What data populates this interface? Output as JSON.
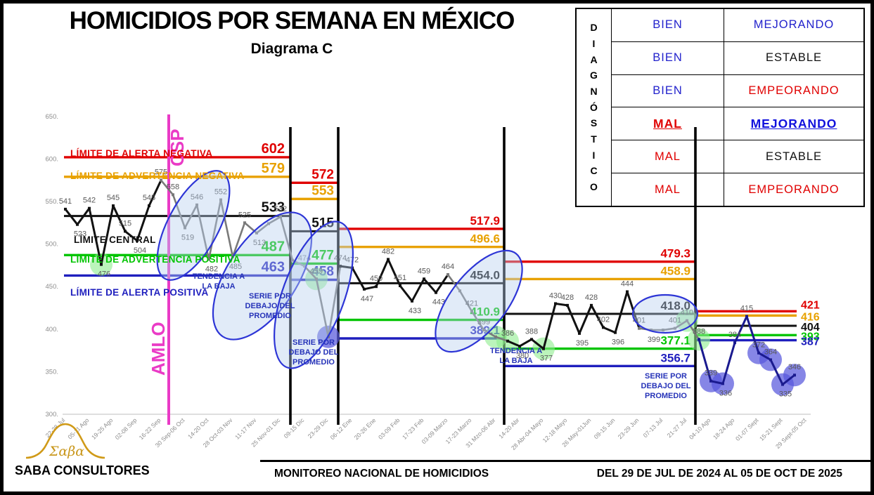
{
  "page": {
    "title": "HOMICIDIOS POR SEMANA EN MÉXICO",
    "subtitle": "Diagrama C"
  },
  "diagnostic_table": {
    "vertical_header": "DIAGNÓSTICO",
    "rows": [
      {
        "status": "BIEN",
        "status_color": "#2222cc",
        "trend": "MEJORANDO",
        "trend_color": "#2222cc",
        "current": false
      },
      {
        "status": "BIEN",
        "status_color": "#2222cc",
        "trend": "ESTABLE",
        "trend_color": "#111111",
        "current": false
      },
      {
        "status": "BIEN",
        "status_color": "#2222cc",
        "trend": "EMPEORANDO",
        "trend_color": "#e00000",
        "current": false
      },
      {
        "status": "MAL",
        "status_color": "#e00000",
        "trend": "MEJORANDO",
        "trend_color": "#1111dd",
        "current": true
      },
      {
        "status": "MAL",
        "status_color": "#e00000",
        "trend": "ESTABLE",
        "trend_color": "#111111",
        "current": false
      },
      {
        "status": "MAL",
        "status_color": "#e00000",
        "trend": "EMPEORANDO",
        "trend_color": "#e00000",
        "current": false
      }
    ]
  },
  "footer": {
    "logo_text": "Σαβα",
    "brand": "SABA CONSULTORES",
    "center": "MONITOREO NACIONAL DE HOMICIDIOS",
    "right": "DEL 29 DE JUL DE 2024 AL 05 DE OCT DE 2025"
  },
  "chart_data": {
    "type": "line",
    "title": "Homicidios por semana en México — Diagrama C",
    "ylabel": "",
    "xlabel": "",
    "ylim": [
      300,
      650
    ],
    "grid": false,
    "yticks": [
      650,
      600,
      550,
      500,
      450,
      400,
      350,
      300
    ],
    "x_tick_labels": [
      "22-28 Jul",
      "05-11 Ago",
      "19-25 Ago",
      "02-08 Sep",
      "16-22 Sep",
      "30 Sep-06 Oct",
      "14-20 Oct",
      "28 Oct-03 Nov",
      "11-17 Nov",
      "25 Nov-01 Dic",
      "09-15 Dic",
      "23-29 Dic",
      "06-12 Ene",
      "20-26 Ene",
      "03-09 Feb",
      "17-23 Feb",
      "03-09 Marzo",
      "17-23 Marzo",
      "31 Mzo-06 Abr",
      "14-20 Abr",
      "28 Abr-04 Mayo",
      "12-18 Mayo",
      "26 May-01Jun",
      "09-15 Jun",
      "23-29 Jun",
      "07-13 Jul",
      "21-27 Jul",
      "04-10 Ago",
      "18-24 Ago",
      "01-07 Sept",
      "15-21 Sept",
      "29 Sept-05 Oct"
    ],
    "series_name": "Homicidios por semana",
    "points": [
      {
        "v": 541,
        "l": "541"
      },
      {
        "v": 523,
        "l": "523"
      },
      {
        "v": 542,
        "l": "542"
      },
      {
        "v": 476,
        "l": "476",
        "hl": "g"
      },
      {
        "v": 545,
        "l": "545"
      },
      {
        "v": 515,
        "l": "515"
      },
      {
        "v": 504,
        "l": "504"
      },
      {
        "v": 545,
        "l": "545"
      },
      {
        "v": 575,
        "l": "575"
      },
      {
        "v": 558,
        "l": "558"
      },
      {
        "v": 519,
        "l": "519"
      },
      {
        "v": 546,
        "l": "546"
      },
      {
        "v": 482,
        "l": "482"
      },
      {
        "v": 552,
        "l": "552"
      },
      {
        "v": 485,
        "l": "485"
      },
      {
        "v": 525,
        "l": "525"
      },
      {
        "v": 513,
        "l": "513"
      },
      {
        "v": 524
      },
      {
        "v": 532,
        "l": "532"
      },
      {
        "v": 481
      },
      {
        "v": 474,
        "l": "474"
      },
      {
        "v": 459,
        "l": "459",
        "hl": "g"
      },
      {
        "v": 391,
        "hl": "b"
      },
      {
        "v": 474,
        "l": "474"
      },
      {
        "v": 472,
        "l": "472"
      },
      {
        "v": 447,
        "l": "447"
      },
      {
        "v": 450,
        "l": "450"
      },
      {
        "v": 482,
        "l": "482"
      },
      {
        "v": 451,
        "l": "451"
      },
      {
        "v": 433,
        "l": "433"
      },
      {
        "v": 459,
        "l": "459"
      },
      {
        "v": 443,
        "l": "443"
      },
      {
        "v": 464,
        "l": "464"
      },
      {
        "v": 445
      },
      {
        "v": 421,
        "l": "421"
      },
      {
        "v": 399,
        "l": "399"
      },
      {
        "v": 391,
        "hl": "g"
      },
      {
        "v": 386,
        "l": "386",
        "hl": "g"
      },
      {
        "v": 380,
        "l": "380"
      },
      {
        "v": 388,
        "l": "388"
      },
      {
        "v": 377,
        "l": "377",
        "hl": "g"
      },
      {
        "v": 430,
        "l": "430"
      },
      {
        "v": 428,
        "l": "428"
      },
      {
        "v": 395,
        "l": "395"
      },
      {
        "v": 428,
        "l": "428"
      },
      {
        "v": 402,
        "l": "402"
      },
      {
        "v": 396,
        "l": "396"
      },
      {
        "v": 444,
        "l": "444"
      },
      {
        "v": 401,
        "l": "401"
      },
      {
        "v": 399,
        "l": "399"
      },
      {
        "v": 399
      },
      {
        "v": 401,
        "l": "401"
      },
      {
        "v": 410,
        "l": "410",
        "hl": "g"
      },
      {
        "v": 388,
        "l": "388",
        "hl": "g"
      },
      {
        "v": 339,
        "l": "339",
        "hl": "b"
      },
      {
        "v": 336,
        "l": "336",
        "hl": "b"
      },
      {
        "v": 384,
        "l": "384"
      },
      {
        "v": 415,
        "l": "415"
      },
      {
        "v": 372,
        "l": "372",
        "hl": "b"
      },
      {
        "v": 364,
        "l": "364",
        "hl": "b"
      },
      {
        "v": 335,
        "l": "335",
        "hl": "b"
      },
      {
        "v": 346,
        "l": "346",
        "hl": "b"
      }
    ],
    "color_spans": [
      [
        0,
        8,
        "black"
      ],
      [
        8,
        23,
        "gray"
      ],
      [
        23,
        32,
        "black"
      ],
      [
        32,
        37,
        "gray"
      ],
      [
        37,
        48,
        "black"
      ],
      [
        48,
        53,
        "gray"
      ],
      [
        53,
        61,
        "navy"
      ]
    ],
    "segments": [
      {
        "x0": 86,
        "x1": 408,
        "label_x": 400,
        "label_size": 20,
        "limits": {
          "alerta_negativa": "602",
          "advertencia_negativa": "579",
          "central": "533",
          "advertencia_positiva": "487",
          "alerta_positiva": "463"
        }
      },
      {
        "x0": 408,
        "x1": 476,
        "label_x": 470,
        "label_size": 19,
        "limits": {
          "alerta_negativa": "572",
          "advertencia_negativa": "553",
          "central": "515",
          "advertencia_positiva": "477",
          "alerta_positiva": "458"
        }
      },
      {
        "x0": 476,
        "x1": 712,
        "label_x": 706,
        "label_size": 17,
        "limits": {
          "alerta_negativa": "517.9",
          "advertencia_negativa": "496.6",
          "central": "454.0",
          "advertencia_positiva": "410.9",
          "alerta_positiva": "389.1"
        }
      },
      {
        "x0": 712,
        "x1": 984,
        "label_x": 977,
        "label_size": 17,
        "limits": {
          "alerta_negativa": "479.3",
          "advertencia_negativa": "458.9",
          "central": "418.0",
          "advertencia_positiva": "377.1",
          "alerta_positiva": "356.7"
        }
      },
      {
        "x0": 984,
        "x1": 1128,
        "label_x": 1134,
        "label_size": 16,
        "label_side": "right",
        "limits": {
          "alerta_negativa": "421",
          "advertencia_negativa": "416",
          "central": "404",
          "advertencia_positiva": "393",
          "alerta_positiva": "387"
        }
      }
    ],
    "segment_boundaries_x": [
      408,
      476,
      712,
      984
    ],
    "event_line": {
      "x": 235,
      "top_label": "CSP",
      "bottom_label": "AMLO",
      "color": "#ea3bc6"
    },
    "limit_names": [
      {
        "text": "LÍMITE DE ALERTA NEGATIVA",
        "x": 95,
        "y": 218,
        "c": "red"
      },
      {
        "text": "LÍMITE DE ADVERTENCIA NEGATIVA",
        "x": 95,
        "y": 250,
        "c": "orange"
      },
      {
        "text": "LÍMITE CENTRAL",
        "x": 100,
        "y": 341,
        "c": "center"
      },
      {
        "text": "LÍMITE DE ADVERTENCIA POSITIVA",
        "x": 95,
        "y": 369,
        "c": "green"
      },
      {
        "text": "LÍMITE DE ALERTA POSITIVA",
        "x": 95,
        "y": 416,
        "c": "blue"
      }
    ],
    "annotations": [
      {
        "x": 306,
        "y": 392,
        "lines": [
          "TENDENCIA A",
          "LA BAJA"
        ]
      },
      {
        "x": 379,
        "y": 420,
        "lines": [
          "SERIE POR",
          "DEBAJO DEL",
          "PROMEDIO"
        ]
      },
      {
        "x": 441,
        "y": 486,
        "lines": [
          "SERIE POR",
          "DEBAJO DEL",
          "PROMEDIO"
        ]
      },
      {
        "x": 729,
        "y": 498,
        "lines": [
          "TENDENCIA A",
          "LA BAJA"
        ]
      },
      {
        "x": 942,
        "y": 534,
        "lines": [
          "SERIE POR",
          "DEBAJO DEL",
          "PROMEDIO"
        ]
      }
    ],
    "trend_ellipses": [
      {
        "cx": 270,
        "cy": 316,
        "rx": 36,
        "ry": 86,
        "rot": 28
      },
      {
        "cx": 368,
        "cy": 388,
        "rx": 50,
        "ry": 103,
        "rot": 33
      },
      {
        "cx": 441,
        "cy": 415,
        "rx": 44,
        "ry": 110,
        "rot": 20
      },
      {
        "cx": 676,
        "cy": 424,
        "rx": 40,
        "ry": 86,
        "rot": 38
      },
      {
        "cx": 941,
        "cy": 442,
        "rx": 46,
        "ry": 27,
        "rot": 0
      }
    ],
    "colors": {
      "red": "#e00000",
      "orange": "#e8a100",
      "center": "#111111",
      "green": "#00c400",
      "blue": "#1f1fbe",
      "series_black": "#111111",
      "series_gray": "#7a7a7a",
      "series_navy": "#1a1a8f",
      "hl_green": "#8dec8d",
      "hl_blue": "#5858dc",
      "ellipse_stroke": "#2d35d6",
      "ellipse_fill": "#b8d0ee",
      "annotation": "#2633b8",
      "tick": "#8c8c8c",
      "label": "#595959"
    }
  }
}
